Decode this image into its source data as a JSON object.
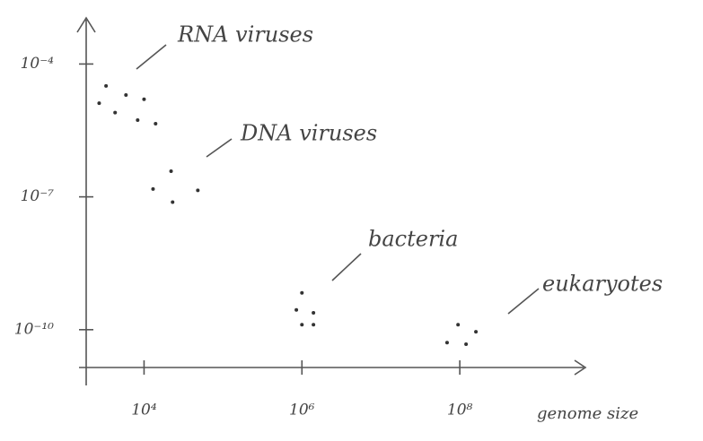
{
  "chart_data": {
    "type": "scatter",
    "x_label": "genome size",
    "annotations": [
      "RNA viruses",
      "DNA viruses",
      "bacteria",
      "eukaryotes"
    ],
    "x": [
      3300,
      5900,
      10000,
      2700,
      4300,
      8300,
      14000,
      22000,
      13000,
      48000,
      23000,
      1000000,
      850000,
      1400000,
      1000000,
      1400000,
      95000000,
      160000000,
      69000000,
      120000000
    ],
    "values": [
      3.2e-05,
      2e-05,
      1.6e-05,
      1.3e-05,
      8e-06,
      5.4e-06,
      4.5e-06,
      3.8e-07,
      1.5e-07,
      1.4e-07,
      7.6e-08,
      6.8e-10,
      2.8e-10,
      2.4e-10,
      1.3e-10,
      1.3e-10,
      1.3e-10,
      9e-11,
      5.1e-11,
      4.7e-11
    ],
    "color": "#333333",
    "log_x": true,
    "log_y": true,
    "xlim": [
      1500,
      3700000000
    ],
    "ylim": [
      1.4e-11,
      0.00087
    ],
    "xticks": [
      {
        "value": 10000,
        "label": "10⁴"
      },
      {
        "value": 1000000,
        "label": "10⁶"
      },
      {
        "value": 100000000,
        "label": "10⁸"
      }
    ],
    "yticks": [
      {
        "value": 0.0001,
        "label": "10⁻⁴"
      },
      {
        "value": 1e-07,
        "label": "10⁻⁷"
      },
      {
        "value": 1e-10,
        "label": "10⁻¹⁰"
      }
    ]
  }
}
